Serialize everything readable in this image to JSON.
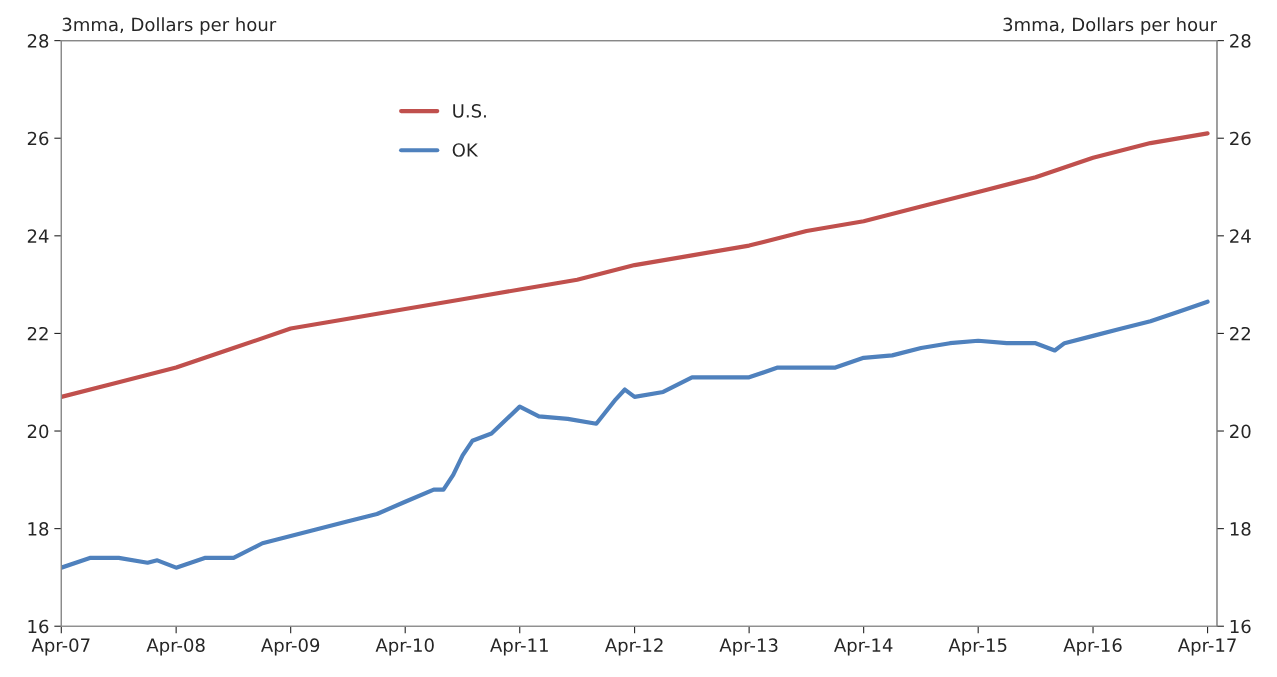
{
  "chart_data": {
    "type": "line",
    "ylabel": "3mma, Dollars per hour",
    "y2label": "3mma, Dollars per hour",
    "ylim": [
      16,
      28
    ],
    "yticks": [
      16,
      18,
      20,
      22,
      24,
      26,
      28
    ],
    "y2lim": [
      16,
      28
    ],
    "y2ticks": [
      16,
      18,
      20,
      22,
      24,
      26,
      28
    ],
    "xlim": [
      "2007-04",
      "2017-05"
    ],
    "xticks": [
      {
        "value": "2007-04",
        "label": "Apr-07"
      },
      {
        "value": "2008-04",
        "label": "Apr-08"
      },
      {
        "value": "2009-04",
        "label": "Apr-09"
      },
      {
        "value": "2010-04",
        "label": "Apr-10"
      },
      {
        "value": "2011-04",
        "label": "Apr-11"
      },
      {
        "value": "2012-04",
        "label": "Apr-12"
      },
      {
        "value": "2013-04",
        "label": "Apr-13"
      },
      {
        "value": "2014-04",
        "label": "Apr-14"
      },
      {
        "value": "2015-04",
        "label": "Apr-15"
      },
      {
        "value": "2016-04",
        "label": "Apr-16"
      },
      {
        "value": "2017-04",
        "label": "Apr-17"
      }
    ],
    "grid": false,
    "legend": "top left",
    "line_style": "solid",
    "marker": "none",
    "series": [
      {
        "name": "U.S.",
        "color": "#c0504d",
        "x": [
          "2007-04",
          "2007-10",
          "2008-04",
          "2008-10",
          "2009-04",
          "2009-10",
          "2010-04",
          "2010-10",
          "2011-04",
          "2011-10",
          "2012-04",
          "2012-10",
          "2013-04",
          "2013-10",
          "2014-04",
          "2014-10",
          "2015-04",
          "2015-10",
          "2016-04",
          "2016-10",
          "2017-04"
        ],
        "values": [
          20.7,
          21.0,
          21.3,
          21.7,
          22.1,
          22.3,
          22.5,
          22.7,
          22.9,
          23.1,
          23.4,
          23.6,
          23.8,
          24.1,
          24.3,
          24.6,
          24.9,
          25.2,
          25.6,
          25.9,
          26.1
        ]
      },
      {
        "name": "OK",
        "color": "#4f81bd",
        "x": [
          "2007-04",
          "2007-07",
          "2007-10",
          "2008-01",
          "2008-02",
          "2008-04",
          "2008-07",
          "2008-10",
          "2009-01",
          "2009-04",
          "2009-10",
          "2010-01",
          "2010-04",
          "2010-07",
          "2010-08",
          "2010-09",
          "2010-10",
          "2010-11",
          "2011-01",
          "2011-04",
          "2011-06",
          "2011-09",
          "2011-12",
          "2012-02",
          "2012-03",
          "2012-04",
          "2012-07",
          "2012-10",
          "2013-01",
          "2013-04",
          "2013-07",
          "2013-10",
          "2014-01",
          "2014-04",
          "2014-07",
          "2014-10",
          "2015-01",
          "2015-04",
          "2015-07",
          "2015-10",
          "2015-12",
          "2016-01",
          "2016-04",
          "2016-07",
          "2016-10",
          "2017-01",
          "2017-04"
        ],
        "values": [
          17.2,
          17.4,
          17.4,
          17.3,
          17.35,
          17.2,
          17.4,
          17.4,
          17.7,
          17.85,
          18.15,
          18.3,
          18.55,
          18.8,
          18.8,
          19.1,
          19.5,
          19.8,
          19.95,
          20.5,
          20.3,
          20.25,
          20.15,
          20.65,
          20.85,
          20.7,
          20.8,
          21.1,
          21.1,
          21.1,
          21.3,
          21.3,
          21.3,
          21.5,
          21.55,
          21.7,
          21.8,
          21.85,
          21.8,
          21.8,
          21.65,
          21.8,
          21.95,
          22.1,
          22.25,
          22.45,
          22.65
        ]
      }
    ]
  }
}
